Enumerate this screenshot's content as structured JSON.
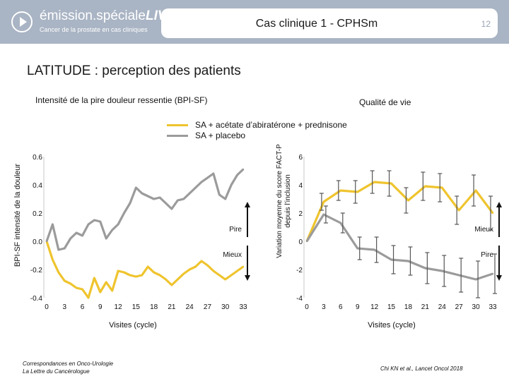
{
  "header": {
    "logo_main": "émission.spéciale",
    "logo_live": "LIVE",
    "logo_sub": "Cancer de la prostate en cas cliniques",
    "slide_title": "Cas clinique 1 - CPHSm",
    "page_number": "12",
    "bg_color": "#a9b4c4"
  },
  "main_title": "LATITUDE : perception des patients",
  "left_subtitle": "Intensité de la pire douleur ressentie (BPI-SF)",
  "right_subtitle": "Qualité de vie",
  "legend": [
    {
      "label": "SA + acétate d’abiratérone + prednisone",
      "color": "#efc42e"
    },
    {
      "label": "SA + placebo",
      "color": "#9b9b9b"
    }
  ],
  "chart_data": [
    {
      "type": "line",
      "ylabel": "BPI-SF intensité de la douleur",
      "xlabel": "Visites (cycle)",
      "ylim": [
        -0.4,
        0.6
      ],
      "yticks": [
        -0.4,
        -0.2,
        0.0,
        0.2,
        0.4,
        0.6
      ],
      "ytick_labels": [
        "-0.4",
        "-0.2",
        "0.0",
        "0.2",
        "0.4",
        "0.6"
      ],
      "xlim": [
        0,
        33
      ],
      "xticks": [
        0,
        3,
        6,
        9,
        12,
        15,
        18,
        21,
        24,
        27,
        30,
        33
      ],
      "arrow_up_label": "Pire",
      "arrow_down_label": "Mieux",
      "series": [
        {
          "name": "SA + acétate d’abiratérone + prednisone",
          "color": "#efc42e",
          "x": [
            0,
            1,
            2,
            3,
            4,
            5,
            6,
            7,
            8,
            9,
            10,
            11,
            12,
            13,
            14,
            15,
            16,
            17,
            18,
            19,
            20,
            21,
            22,
            23,
            24,
            25,
            26,
            27,
            28,
            29,
            30,
            31,
            32,
            33
          ],
          "y": [
            0,
            -0.13,
            -0.22,
            -0.28,
            -0.3,
            -0.33,
            -0.34,
            -0.4,
            -0.26,
            -0.36,
            -0.29,
            -0.35,
            -0.21,
            -0.22,
            -0.24,
            -0.25,
            -0.24,
            -0.18,
            -0.22,
            -0.24,
            -0.27,
            -0.31,
            -0.27,
            -0.23,
            -0.2,
            -0.18,
            -0.14,
            -0.17,
            -0.21,
            -0.24,
            -0.27,
            -0.24,
            -0.21,
            -0.18
          ]
        },
        {
          "name": "SA + placebo",
          "color": "#9b9b9b",
          "x": [
            0,
            1,
            2,
            3,
            4,
            5,
            6,
            7,
            8,
            9,
            10,
            11,
            12,
            13,
            14,
            15,
            16,
            17,
            18,
            19,
            20,
            21,
            22,
            23,
            24,
            25,
            26,
            27,
            28,
            29,
            30,
            31,
            32,
            33
          ],
          "y": [
            0,
            0.12,
            -0.06,
            -0.05,
            0.02,
            0.06,
            0.04,
            0.12,
            0.15,
            0.14,
            0.02,
            0.08,
            0.12,
            0.2,
            0.27,
            0.38,
            0.34,
            0.32,
            0.3,
            0.31,
            0.27,
            0.23,
            0.29,
            0.3,
            0.34,
            0.38,
            0.42,
            0.45,
            0.48,
            0.33,
            0.3,
            0.4,
            0.47,
            0.51
          ]
        }
      ]
    },
    {
      "type": "line",
      "ylabel": "Variation moyenne du score FACT-P depuis l’inclusion",
      "xlabel": "Visites (cycle)",
      "ylim": [
        -4,
        6
      ],
      "yticks": [
        -4,
        -2,
        0,
        2,
        4,
        6
      ],
      "ytick_labels": [
        "-4",
        "-2",
        "0",
        "2",
        "4",
        "6"
      ],
      "xlim": [
        0,
        33
      ],
      "xticks": [
        0,
        3,
        6,
        9,
        12,
        15,
        18,
        21,
        24,
        27,
        30,
        33
      ],
      "arrow_up_label": "Mieux",
      "arrow_down_label": "Pire",
      "error_bars": true,
      "series": [
        {
          "name": "SA + acétate d’abiratérone + prednisone",
          "color": "#efc42e",
          "x": [
            0,
            3,
            6,
            9,
            12,
            15,
            18,
            21,
            24,
            27,
            30,
            33
          ],
          "y": [
            0,
            2.8,
            3.6,
            3.5,
            4.2,
            4.1,
            2.9,
            3.9,
            3.8,
            2.2,
            3.6,
            2.0
          ],
          "err": [
            0,
            0.6,
            0.7,
            0.8,
            0.8,
            0.9,
            0.9,
            1.0,
            1.0,
            1.0,
            1.1,
            1.2
          ]
        },
        {
          "name": "SA + placebo",
          "color": "#9b9b9b",
          "x": [
            0,
            3,
            6,
            9,
            12,
            15,
            18,
            21,
            24,
            27,
            30,
            33
          ],
          "y": [
            0,
            1.9,
            1.3,
            -0.5,
            -0.6,
            -1.3,
            -1.4,
            -1.9,
            -2.1,
            -2.4,
            -2.7,
            -2.3
          ],
          "err": [
            0,
            0.6,
            0.7,
            0.8,
            0.9,
            1.0,
            1.0,
            1.1,
            1.1,
            1.2,
            1.3,
            1.4
          ]
        }
      ]
    }
  ],
  "footer": {
    "left_line1": "Correspondances en Onco-Urologie",
    "left_line2": "La Lettre du Cancérologue",
    "right": "Chi KN et al., Lancet Oncol 2018"
  }
}
